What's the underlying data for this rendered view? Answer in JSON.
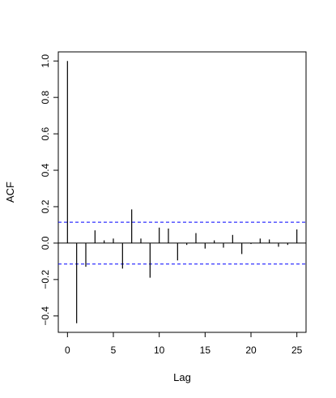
{
  "chart_data": {
    "type": "bar",
    "title": "",
    "xlabel": "Lag",
    "ylabel": "ACF",
    "xlim": [
      -1,
      26
    ],
    "ylim": [
      -0.49,
      1.05
    ],
    "xticks": [
      0,
      5,
      10,
      15,
      20,
      25
    ],
    "yticks": [
      -0.4,
      -0.2,
      0.0,
      0.2,
      0.4,
      0.6,
      0.8,
      1.0
    ],
    "ytick_labels": [
      "−0.4",
      "−0.2",
      "0.0",
      "0.2",
      "0.4",
      "0.6",
      "0.8",
      "1.0"
    ],
    "grid": false,
    "lags": [
      0,
      1,
      2,
      3,
      4,
      5,
      6,
      7,
      8,
      9,
      10,
      11,
      12,
      13,
      14,
      15,
      16,
      17,
      18,
      19,
      20,
      21,
      22,
      23,
      24,
      25
    ],
    "values": [
      1.0,
      -0.44,
      -0.13,
      0.07,
      0.015,
      0.025,
      -0.14,
      0.185,
      0.025,
      -0.19,
      0.085,
      0.08,
      -0.095,
      -0.01,
      0.055,
      -0.03,
      0.015,
      -0.025,
      0.045,
      -0.06,
      -0.005,
      0.025,
      0.02,
      -0.02,
      -0.01,
      0.075
    ],
    "confidence_bounds": [
      0.115,
      -0.115
    ],
    "colors": {
      "bars": "#000000",
      "bounds": "#0000ff",
      "axis": "#000000"
    }
  }
}
